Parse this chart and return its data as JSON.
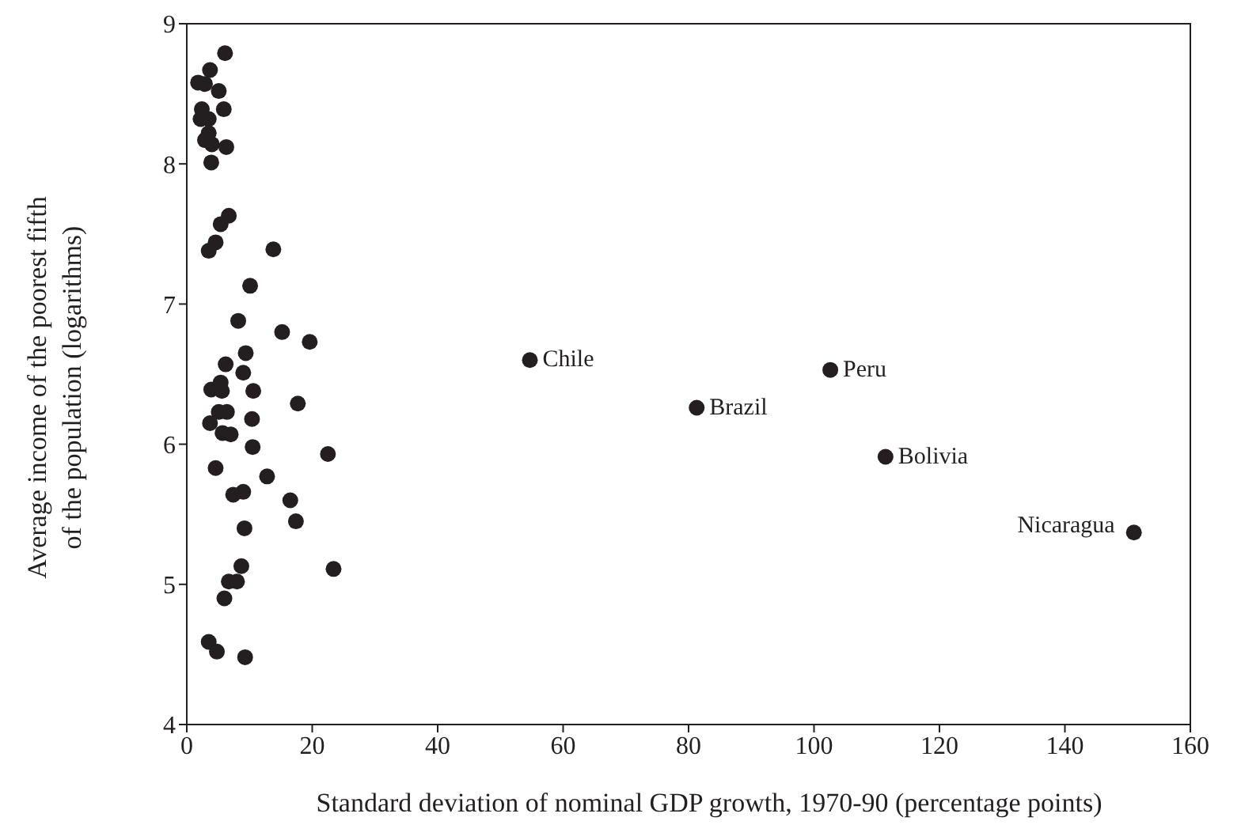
{
  "chart_data": {
    "type": "scatter",
    "xlabel": "Standard deviation of nominal GDP growth, 1970-90 (percentage points)",
    "ylabel": "Average income of the poorest fifth\nof the population (logarithms)",
    "x": [
      1.8,
      3.7,
      6.1,
      2.9,
      5.1,
      2.4,
      5.9,
      2.2,
      3.5,
      3.5,
      2.9,
      4.0,
      6.3,
      3.9,
      6.7,
      5.4,
      4.6,
      3.5,
      13.8,
      10.1,
      8.2,
      15.2,
      19.6,
      9.4,
      6.2,
      9.0,
      3.9,
      5.4,
      5.6,
      10.6,
      17.7,
      5.1,
      6.4,
      3.7,
      10.4,
      5.7,
      7.0,
      10.5,
      22.5,
      4.6,
      12.8,
      7.4,
      9.0,
      16.5,
      17.4,
      9.2,
      8.7,
      23.4,
      6.7,
      8.0,
      6.0,
      3.5,
      4.8,
      9.3,
      54.7,
      81.3,
      102.6,
      111.4,
      151.0
    ],
    "values": [
      8.58,
      8.67,
      8.79,
      8.57,
      8.52,
      8.39,
      8.39,
      8.32,
      8.32,
      8.22,
      8.17,
      8.14,
      8.12,
      8.01,
      7.63,
      7.57,
      7.44,
      7.38,
      7.39,
      7.13,
      6.88,
      6.8,
      6.73,
      6.65,
      6.57,
      6.51,
      6.39,
      6.44,
      6.38,
      6.38,
      6.29,
      6.23,
      6.23,
      6.15,
      6.18,
      6.08,
      6.07,
      5.98,
      5.93,
      5.83,
      5.77,
      5.64,
      5.66,
      5.6,
      5.45,
      5.4,
      5.13,
      5.11,
      5.02,
      5.02,
      4.9,
      4.59,
      4.52,
      4.48,
      6.6,
      6.26,
      6.53,
      5.91,
      5.37
    ],
    "color": "#231f20",
    "marker": "circle",
    "xlim": [
      0,
      160
    ],
    "xticks": [
      0,
      20,
      40,
      60,
      80,
      100,
      120,
      140,
      160
    ],
    "ylim": [
      4,
      9
    ],
    "yticks": [
      4,
      5,
      6,
      7,
      8,
      9
    ],
    "grid": false,
    "annotations": [
      {
        "text": "Chile",
        "x": 54.7,
        "y": 6.6
      },
      {
        "text": "Brazil",
        "x": 81.3,
        "y": 6.26
      },
      {
        "text": "Peru",
        "x": 102.6,
        "y": 6.53
      },
      {
        "text": "Bolivia",
        "x": 111.4,
        "y": 5.91
      },
      {
        "text": "Nicaragua",
        "x": 151.0,
        "y": 5.37
      }
    ]
  }
}
